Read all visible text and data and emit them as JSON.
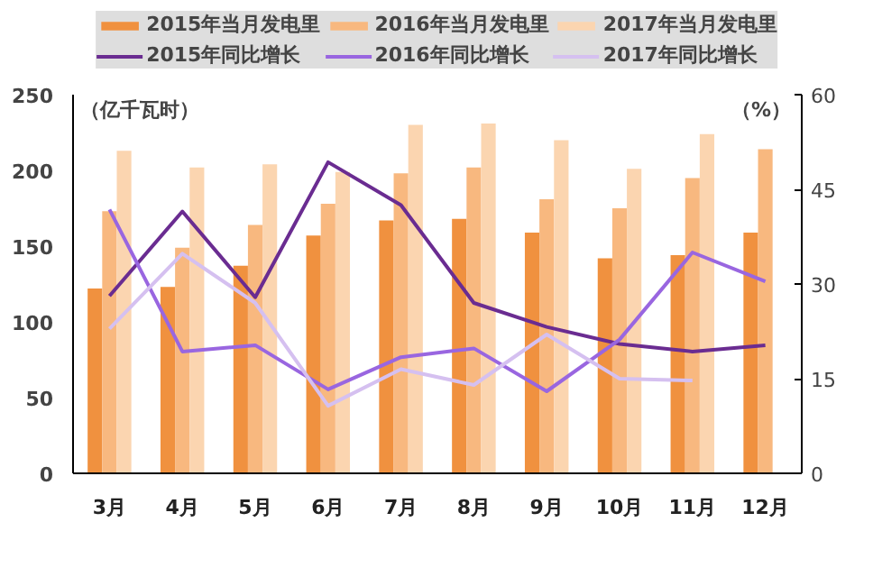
{
  "chart_data": {
    "type": "bar",
    "ylabel": "（亿千瓦时）",
    "y2label": "（%）",
    "categories": [
      "3月",
      "4月",
      "5月",
      "6月",
      "7月",
      "8月",
      "9月",
      "10月",
      "11月",
      "12月"
    ],
    "ylim": [
      0,
      250
    ],
    "yticks": [
      0,
      50,
      100,
      150,
      200,
      250
    ],
    "y2lim": [
      0,
      60
    ],
    "y2ticks": [
      0,
      15,
      30,
      45,
      60
    ],
    "grid": false,
    "legend": "top",
    "line_style": "solid",
    "marker": "none",
    "series": [
      {
        "name": "2015年当月发电里",
        "color": "#f0913f",
        "values": [
          122,
          123,
          137,
          157,
          167,
          168,
          159,
          142,
          144,
          159
        ]
      },
      {
        "name": "2016年当月发电里",
        "color": "#f8b87f",
        "values": [
          173,
          149,
          164,
          178,
          198,
          202,
          181,
          175,
          195,
          214
        ]
      },
      {
        "name": "2017年当月发电里",
        "color": "#fbd5b0",
        "values": [
          213,
          202,
          204,
          199,
          230,
          231,
          220,
          201,
          224,
          null
        ]
      },
      {
        "name": "2015年同比增长",
        "type": "line",
        "axis": "y2",
        "color": "#6a2c91",
        "values": [
          28.1,
          41.5,
          27.9,
          49.3,
          42.5,
          27.0,
          23.2,
          20.5,
          19.3,
          20.3
        ]
      },
      {
        "name": "2016年同比增长",
        "type": "line",
        "axis": "y2",
        "color": "#9966e0",
        "values": [
          41.8,
          19.3,
          20.3,
          13.3,
          18.4,
          19.8,
          13.0,
          21.2,
          35.0,
          30.4
        ]
      },
      {
        "name": "2017年同比增长",
        "type": "line",
        "axis": "y2",
        "color": "#d5c0f0",
        "values": [
          22.9,
          34.8,
          27.0,
          10.7,
          16.5,
          14.0,
          22.0,
          15.0,
          14.7,
          null
        ]
      }
    ]
  }
}
